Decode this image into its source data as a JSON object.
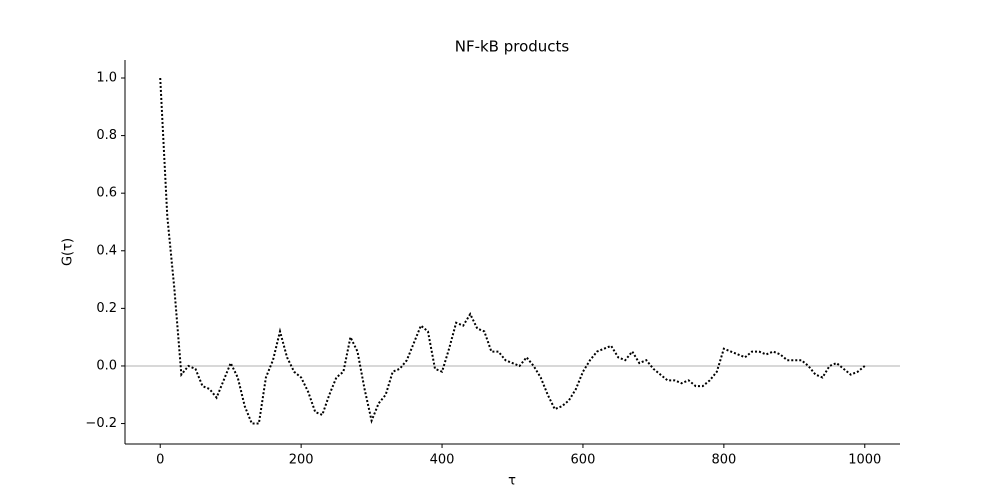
{
  "chart_data": {
    "type": "line",
    "title": "NF-kB products",
    "xlabel": "τ",
    "ylabel": "G(τ)",
    "x": [
      0,
      10,
      20,
      30,
      40,
      50,
      60,
      70,
      80,
      90,
      100,
      110,
      120,
      130,
      140,
      150,
      160,
      170,
      180,
      190,
      200,
      210,
      220,
      230,
      240,
      250,
      260,
      270,
      280,
      290,
      300,
      310,
      320,
      330,
      340,
      350,
      360,
      370,
      380,
      390,
      400,
      410,
      420,
      430,
      440,
      450,
      460,
      470,
      480,
      490,
      500,
      510,
      520,
      530,
      540,
      550,
      560,
      570,
      580,
      590,
      600,
      610,
      620,
      630,
      640,
      650,
      660,
      670,
      680,
      690,
      700,
      710,
      720,
      730,
      740,
      750,
      760,
      770,
      780,
      790,
      800,
      810,
      820,
      830,
      840,
      850,
      860,
      870,
      880,
      890,
      900,
      910,
      920,
      930,
      940,
      950,
      960,
      970,
      980,
      990,
      1000
    ],
    "series": [
      {
        "name": "G",
        "color": "#000000",
        "linestyle": "dotted",
        "values": [
          1.0,
          0.52,
          0.27,
          -0.03,
          0.0,
          -0.01,
          -0.07,
          -0.08,
          -0.11,
          -0.05,
          0.01,
          -0.04,
          -0.14,
          -0.2,
          -0.2,
          -0.04,
          0.02,
          0.12,
          0.03,
          -0.02,
          -0.04,
          -0.09,
          -0.16,
          -0.17,
          -0.1,
          -0.04,
          -0.02,
          0.1,
          0.05,
          -0.08,
          -0.19,
          -0.13,
          -0.1,
          -0.02,
          -0.01,
          0.02,
          0.08,
          0.14,
          0.12,
          -0.01,
          -0.02,
          0.06,
          0.15,
          0.14,
          0.18,
          0.13,
          0.12,
          0.05,
          0.05,
          0.02,
          0.01,
          0.0,
          0.03,
          0.0,
          -0.04,
          -0.1,
          -0.15,
          -0.14,
          -0.12,
          -0.08,
          -0.02,
          0.02,
          0.05,
          0.06,
          0.07,
          0.03,
          0.02,
          0.05,
          0.01,
          0.02,
          -0.01,
          -0.03,
          -0.05,
          -0.05,
          -0.06,
          -0.05,
          -0.07,
          -0.07,
          -0.05,
          -0.02,
          0.06,
          0.05,
          0.04,
          0.03,
          0.05,
          0.05,
          0.04,
          0.05,
          0.04,
          0.02,
          0.02,
          0.02,
          0.0,
          -0.03,
          -0.04,
          0.0,
          0.01,
          -0.01,
          -0.03,
          -0.02,
          0.0
        ]
      }
    ],
    "hline": 0,
    "hline_color": "#cccccc",
    "xlim": [
      -50,
      1050
    ],
    "xticks": [
      0,
      200,
      400,
      600,
      800,
      1000
    ],
    "ylim": [
      -0.271,
      1.0625
    ],
    "yticks": [
      {
        "value": -0.2,
        "label": "−0.2"
      },
      {
        "value": 0,
        "label": "0.0"
      },
      0.2,
      0.4,
      0.6,
      0.8,
      {
        "value": 1,
        "label": "1.0"
      }
    ]
  }
}
